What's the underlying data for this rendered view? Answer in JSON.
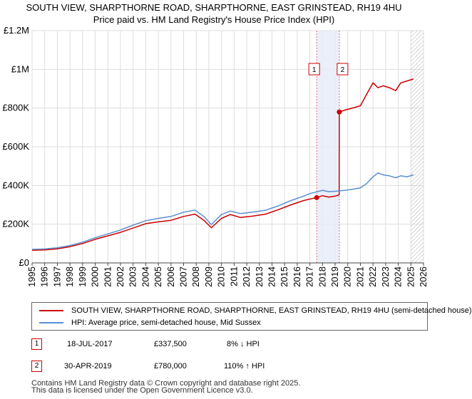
{
  "chart_data": {
    "type": "line",
    "title": "SOUTH VIEW, SHARPTHORNE ROAD, SHARPTHORNE, EAST GRINSTEAD, RH19 4HU",
    "subtitle": "Price paid vs. HM Land Registry's House Price Index (HPI)",
    "xlabel": "",
    "ylabel": "",
    "xlim": [
      1995,
      2026
    ],
    "ylim": [
      0,
      1200000
    ],
    "x_ticks": [
      "1995",
      "1996",
      "1997",
      "1998",
      "1999",
      "2000",
      "2001",
      "2002",
      "2003",
      "2004",
      "2005",
      "2006",
      "2007",
      "2008",
      "2009",
      "2010",
      "2011",
      "2012",
      "2013",
      "2014",
      "2015",
      "2016",
      "2017",
      "2018",
      "2019",
      "2020",
      "2021",
      "2022",
      "2023",
      "2024",
      "2025",
      "2026"
    ],
    "y_ticks": [
      {
        "value": 0,
        "label": "£0"
      },
      {
        "value": 200000,
        "label": "£200K"
      },
      {
        "value": 400000,
        "label": "£400K"
      },
      {
        "value": 600000,
        "label": "£600K"
      },
      {
        "value": 800000,
        "label": "£800K"
      },
      {
        "value": 1000000,
        "label": "£1M"
      },
      {
        "value": 1200000,
        "label": "£1.2M"
      }
    ],
    "grid": true,
    "shaded_span": [
      2017.54,
      2019.33
    ],
    "hatched_from": 2025.0,
    "series": [
      {
        "name": "SOUTH VIEW, SHARPTHORNE ROAD, SHARPTHORNE, EAST GRINSTEAD, RH19 4HU (semi-detached house)",
        "color": "#cc0000",
        "x": [
          1995.0,
          1996.0,
          1997.0,
          1998.0,
          1999.0,
          2000.0,
          2001.0,
          2002.0,
          2003.0,
          2004.0,
          2005.0,
          2006.0,
          2007.0,
          2007.9,
          2008.6,
          2009.2,
          2010.0,
          2010.7,
          2011.5,
          2012.5,
          2013.5,
          2014.5,
          2015.5,
          2016.5,
          2017.0,
          2017.54,
          2018.0,
          2018.5,
          2019.0,
          2019.32,
          2019.33,
          2019.8,
          2020.5,
          2021.0,
          2021.5,
          2022.0,
          2022.4,
          2022.8,
          2023.3,
          2023.8,
          2024.2,
          2024.7,
          2025.2
        ],
        "values": [
          65000,
          67000,
          73000,
          84000,
          100000,
          122000,
          140000,
          158000,
          180000,
          203000,
          212000,
          220000,
          240000,
          252000,
          220000,
          182000,
          230000,
          250000,
          235000,
          242000,
          252000,
          275000,
          300000,
          322000,
          330000,
          337500,
          347000,
          340000,
          345000,
          352000,
          780000,
          790000,
          802000,
          812000,
          872000,
          930000,
          905000,
          915000,
          905000,
          890000,
          930000,
          940000,
          950000
        ]
      },
      {
        "name": "HPI: Average price, semi-detached house, Mid Sussex",
        "color": "#5b8fd0",
        "x": [
          1995.0,
          1996.0,
          1997.0,
          1998.0,
          1999.0,
          2000.0,
          2001.0,
          2002.0,
          2003.0,
          2004.0,
          2005.0,
          2006.0,
          2007.0,
          2007.9,
          2008.6,
          2009.2,
          2010.0,
          2010.7,
          2011.5,
          2012.5,
          2013.5,
          2014.5,
          2015.5,
          2016.5,
          2017.0,
          2017.54,
          2018.0,
          2018.5,
          2019.0,
          2019.33,
          2019.8,
          2020.5,
          2021.0,
          2021.5,
          2022.0,
          2022.4,
          2022.8,
          2023.3,
          2023.8,
          2024.2,
          2024.7,
          2025.2
        ],
        "values": [
          70000,
          72000,
          78000,
          90000,
          107000,
          130000,
          150000,
          170000,
          195000,
          218000,
          230000,
          240000,
          262000,
          273000,
          240000,
          198000,
          250000,
          268000,
          255000,
          263000,
          272000,
          295000,
          322000,
          345000,
          358000,
          367000,
          375000,
          368000,
          370000,
          372000,
          375000,
          382000,
          388000,
          410000,
          445000,
          465000,
          455000,
          450000,
          440000,
          450000,
          445000,
          455000
        ]
      }
    ],
    "markers": [
      {
        "label": "1",
        "x": 2017.54,
        "value": 337500
      },
      {
        "label": "2",
        "x": 2019.33,
        "value": 780000
      }
    ]
  },
  "legend": {
    "items": [
      {
        "label": "SOUTH VIEW, SHARPTHORNE ROAD, SHARPTHORNE, EAST GRINSTEAD, RH19 4HU (semi-detached house)",
        "color": "#cc0000"
      },
      {
        "label": "HPI: Average price, semi-detached house, Mid Sussex",
        "color": "#5b8fd0"
      }
    ]
  },
  "transactions": [
    {
      "num": "1",
      "date": "18-JUL-2017",
      "price": "£337,500",
      "hpi": "8% ↓ HPI"
    },
    {
      "num": "2",
      "date": "30-APR-2019",
      "price": "£780,000",
      "hpi": "110% ↑ HPI"
    }
  ],
  "footer": {
    "line1": "Contains HM Land Registry data © Crown copyright and database right 2025.",
    "line2": "This data is licensed under the Open Government Licence v3.0."
  }
}
